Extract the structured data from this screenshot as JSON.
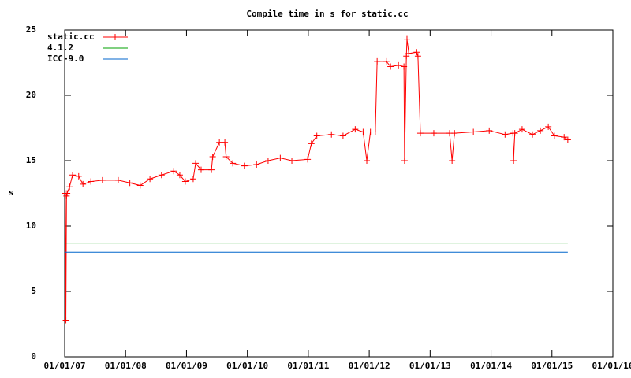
{
  "chart_data": {
    "type": "line",
    "title": "Compile time in s for static.cc",
    "y_label": "s",
    "xlim": [
      2007,
      2016
    ],
    "xticks": [
      {
        "value": 2007,
        "label": "01/01/07"
      },
      {
        "value": 2008,
        "label": "01/01/08"
      },
      {
        "value": 2009,
        "label": "01/01/09"
      },
      {
        "value": 2010,
        "label": "01/01/10"
      },
      {
        "value": 2011,
        "label": "01/01/11"
      },
      {
        "value": 2012,
        "label": "01/01/12"
      },
      {
        "value": 2013,
        "label": "01/01/13"
      },
      {
        "value": 2014,
        "label": "01/01/14"
      },
      {
        "value": 2015,
        "label": "01/01/15"
      },
      {
        "value": 2016,
        "label": "01/01/16"
      }
    ],
    "ylim": [
      0,
      25
    ],
    "yticks": [
      0,
      5,
      10,
      15,
      20,
      25
    ],
    "legend": "top-left",
    "series": [
      {
        "name": "static.cc",
        "color": "#ff0000",
        "markers": true,
        "x": [
          2007.01,
          2007.02,
          2007.03,
          2007.04,
          2007.08,
          2007.13,
          2007.23,
          2007.3,
          2007.43,
          2007.62,
          2007.88,
          2008.07,
          2008.24,
          2008.4,
          2008.59,
          2008.79,
          2008.89,
          2008.98,
          2009.11,
          2009.15,
          2009.24,
          2009.41,
          2009.43,
          2009.54,
          2009.63,
          2009.65,
          2009.76,
          2009.95,
          2010.15,
          2010.34,
          2010.54,
          2010.73,
          2010.99,
          2011.05,
          2011.14,
          2011.38,
          2011.57,
          2011.77,
          2011.9,
          2011.96,
          2012.02,
          2012.1,
          2012.13,
          2012.28,
          2012.35,
          2012.48,
          2012.57,
          2012.58,
          2012.61,
          2012.62,
          2012.65,
          2012.78,
          2012.8,
          2012.84,
          2013.06,
          2013.32,
          2013.36,
          2013.4,
          2013.71,
          2013.97,
          2014.23,
          2014.36,
          2014.37,
          2014.39,
          2014.51,
          2014.68,
          2014.81,
          2014.94,
          2015.04,
          2015.2,
          2015.26
        ],
        "values": [
          12.5,
          2.8,
          12.3,
          12.5,
          13.0,
          13.9,
          13.8,
          13.2,
          13.4,
          13.5,
          13.5,
          13.3,
          13.1,
          13.6,
          13.9,
          14.2,
          13.9,
          13.4,
          13.6,
          14.8,
          14.3,
          14.3,
          15.3,
          16.4,
          16.4,
          15.3,
          14.8,
          14.6,
          14.7,
          15.0,
          15.2,
          15.0,
          15.1,
          16.3,
          16.9,
          17.0,
          16.9,
          17.4,
          17.2,
          15.0,
          17.2,
          17.2,
          22.6,
          22.6,
          22.2,
          22.3,
          22.2,
          15.0,
          23.0,
          24.3,
          23.2,
          23.3,
          23.0,
          17.1,
          17.1,
          17.1,
          15.0,
          17.1,
          17.2,
          17.3,
          17.0,
          17.1,
          15.0,
          17.1,
          17.4,
          17.0,
          17.3,
          17.6,
          16.9,
          16.8,
          16.6
        ]
      },
      {
        "name": "4.1.2",
        "color": "#00a000",
        "markers": false,
        "x": [
          2007.0,
          2015.26
        ],
        "values": [
          8.7,
          8.7
        ]
      },
      {
        "name": "ICC-9.0",
        "color": "#0066cc",
        "markers": false,
        "x": [
          2007.0,
          2015.26
        ],
        "values": [
          8.0,
          8.0
        ]
      }
    ]
  }
}
